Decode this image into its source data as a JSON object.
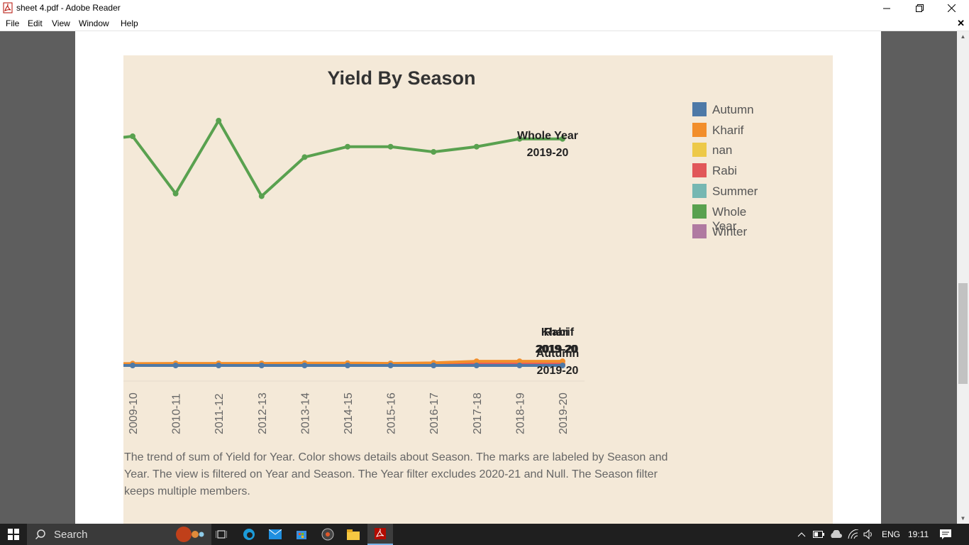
{
  "window": {
    "title": "sheet 4.pdf - Adobe Reader"
  },
  "menu": [
    "File",
    "Edit",
    "View",
    "Window",
    "Help"
  ],
  "colors": {
    "Autumn": "#4e79a7",
    "Kharif": "#f28e2b",
    "nan": "#edc948",
    "Rabi": "#e15759",
    "Summer": "#76b7b2",
    "Whole Year": "#59a14f",
    "Winter": "#b07aa1",
    "background": "#f4e9d8"
  },
  "chart_data": {
    "type": "line",
    "title": "Yield By Season",
    "categories": [
      "2009-10",
      "2010-11",
      "2011-12",
      "2012-13",
      "2013-14",
      "2014-15",
      "2015-16",
      "2016-17",
      "2017-18",
      "2018-19",
      "2019-20"
    ],
    "ylim": [
      0,
      100
    ],
    "series": [
      {
        "name": "Whole Year",
        "values": [
          88,
          66,
          94,
          65,
          80,
          84,
          84,
          82,
          84,
          87,
          87
        ]
      },
      {
        "name": "Kharif",
        "values": [
          0.7,
          0.8,
          0.8,
          0.8,
          0.9,
          0.9,
          0.8,
          1.0,
          1.6,
          1.6,
          1.6
        ]
      },
      {
        "name": "Rabi",
        "values": [
          0.3,
          0.3,
          0.3,
          0.3,
          0.3,
          0.3,
          0.3,
          0.3,
          0.5,
          0.5,
          0.5
        ]
      },
      {
        "name": "Autumn",
        "values": [
          0,
          0,
          0,
          0,
          0,
          0,
          0,
          0,
          0,
          0,
          0
        ]
      }
    ],
    "legend": [
      "Autumn",
      "Kharif",
      "nan",
      "Rabi",
      "Summer",
      "Whole Year",
      "Winter"
    ],
    "annotations": [
      {
        "series": "Whole Year",
        "lines": [
          "Whole Year",
          "2019-20"
        ]
      },
      {
        "series": "Kharif",
        "lines": [
          "Kharif",
          "2019-20"
        ]
      },
      {
        "series": "Rabi",
        "lines": [
          "Rabi",
          "2019-20"
        ]
      },
      {
        "series": "Autumn",
        "lines": [
          "Autumn",
          "2019-20"
        ]
      }
    ],
    "caption": "The trend of sum of Yield for Year.  Color shows details about Season.  The marks are labeled by Season and Year. The view is filtered on Year and Season. The Year filter excludes 2020-21 and Null. The Season filter keeps multiple members."
  },
  "taskbar": {
    "search": "Search",
    "lang": "ENG",
    "time": "19:11"
  }
}
